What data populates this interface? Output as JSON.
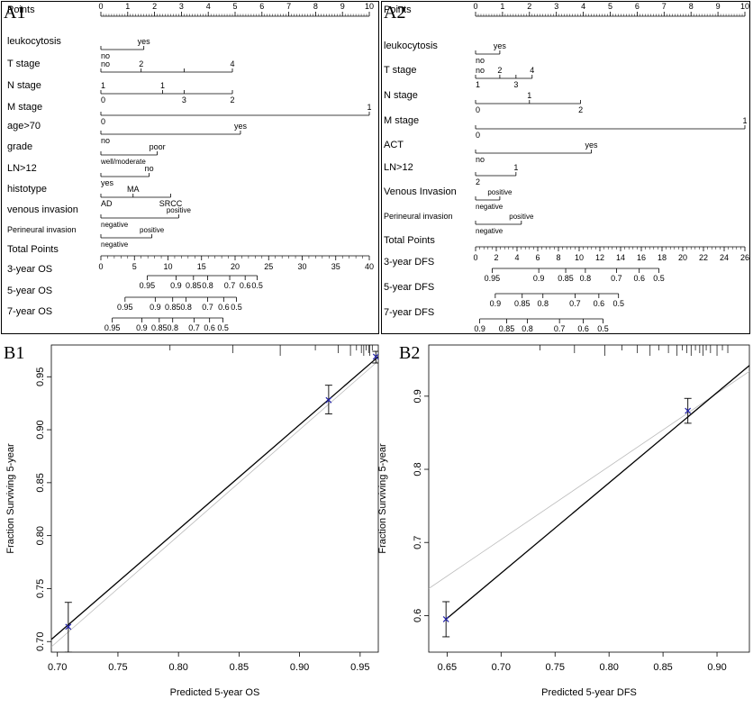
{
  "chart_data": [
    {
      "panel": "A1",
      "type": "nomogram",
      "points_ticks": [
        "0",
        "1",
        "2",
        "3",
        "4",
        "5",
        "6",
        "7",
        "8",
        "9",
        "10"
      ],
      "rows": [
        {
          "label": "Points",
          "kind": "points"
        },
        {
          "label": "leukocytosis",
          "marks": [
            {
              "t": "no",
              "p": 0,
              "pos": "below"
            },
            {
              "t": "yes",
              "p": 1.6,
              "pos": "above"
            }
          ],
          "range": [
            0,
            1.6
          ]
        },
        {
          "label": "T stage",
          "marks": [
            {
              "t": "no",
              "p": 0,
              "pos": "above"
            },
            {
              "t": "2",
              "p": 1.5,
              "pos": "above"
            },
            {
              "t": "4",
              "p": 4.9,
              "pos": "above"
            }
          ],
          "range": [
            0,
            4.9
          ],
          "ticks": [
            0,
            1.5,
            3.1,
            4.9
          ]
        },
        {
          "label": "N stage",
          "marks": [
            {
              "t": "1",
              "p": 0,
              "pos": "above"
            },
            {
              "t": "1",
              "p": 2.3,
              "pos": "above"
            },
            {
              "t": "3",
              "p": 3.1,
              "pos": "below"
            },
            {
              "t": "0",
              "p": 0,
              "pos": "below"
            },
            {
              "t": "2",
              "p": 4.9,
              "pos": "below"
            }
          ],
          "range": [
            0,
            4.9
          ],
          "ticks": [
            0,
            2.3,
            3.1,
            4.9
          ]
        },
        {
          "label": "M stage",
          "marks": [
            {
              "t": "1",
              "p": 10,
              "pos": "above"
            },
            {
              "t": "0",
              "p": 0,
              "pos": "below"
            }
          ],
          "range": [
            0,
            10
          ]
        },
        {
          "label": "age>70",
          "marks": [
            {
              "t": "yes",
              "p": 5.2,
              "pos": "above"
            },
            {
              "t": "no",
              "p": 0,
              "pos": "below"
            }
          ],
          "range": [
            0,
            5.2
          ]
        },
        {
          "label": "grade",
          "marks": [
            {
              "t": "poor",
              "p": 2.1,
              "pos": "above"
            },
            {
              "t": "well/moderate",
              "p": 0,
              "pos": "below"
            }
          ],
          "range": [
            0,
            2.1
          ]
        },
        {
          "label": "LN>12",
          "marks": [
            {
              "t": "no",
              "p": 1.8,
              "pos": "above"
            },
            {
              "t": "yes",
              "p": 0,
              "pos": "below"
            }
          ],
          "range": [
            0,
            1.8
          ]
        },
        {
          "label": "histotype",
          "marks": [
            {
              "t": "MA",
              "p": 1.2,
              "pos": "above"
            },
            {
              "t": "AD",
              "p": 0,
              "pos": "below"
            },
            {
              "t": "SRCC",
              "p": 2.6,
              "pos": "below"
            }
          ],
          "range": [
            0,
            2.6
          ],
          "ticks": [
            0,
            1.2,
            2.6
          ]
        },
        {
          "label": "venous invasion",
          "marks": [
            {
              "t": "positive",
              "p": 2.9,
              "pos": "above"
            },
            {
              "t": "negative",
              "p": 0,
              "pos": "below"
            }
          ],
          "range": [
            0,
            2.9
          ]
        },
        {
          "label": "Perineural invasion",
          "marks": [
            {
              "t": "positive",
              "p": 1.9,
              "pos": "above"
            },
            {
              "t": "negative",
              "p": 0,
              "pos": "below"
            }
          ],
          "range": [
            0,
            1.9
          ]
        }
      ],
      "total_points": {
        "label": "Total Points",
        "ticks": [
          "0",
          "5",
          "10",
          "15",
          "20",
          "25",
          "30",
          "35",
          "40"
        ],
        "max": 40
      },
      "survival_rows": [
        {
          "label": "3-year OS",
          "ticks": [
            {
              "t": "0.95",
              "tp": 6.9
            },
            {
              "t": "0.9",
              "tp": 11.2
            },
            {
              "t": "0.85",
              "tp": 13.8
            },
            {
              "t": "0.8",
              "tp": 15.9
            },
            {
              "t": "0.7",
              "tp": 19.2
            },
            {
              "t": "0.6",
              "tp": 21.5
            },
            {
              "t": "0.5",
              "tp": 23.3
            }
          ]
        },
        {
          "label": "5-year OS",
          "ticks": [
            {
              "t": "0.95",
              "tp": 3.6
            },
            {
              "t": "0.9",
              "tp": 8.1
            },
            {
              "t": "0.85",
              "tp": 10.7
            },
            {
              "t": "0.8",
              "tp": 12.7
            },
            {
              "t": "0.7",
              "tp": 15.9
            },
            {
              "t": "0.6",
              "tp": 18.3
            },
            {
              "t": "0.5",
              "tp": 20.2
            }
          ]
        },
        {
          "label": "7-year OS",
          "ticks": [
            {
              "t": "0.95",
              "tp": 1.7
            },
            {
              "t": "0.9",
              "tp": 6.1
            },
            {
              "t": "0.85",
              "tp": 8.7
            },
            {
              "t": "0.8",
              "tp": 10.7
            },
            {
              "t": "0.7",
              "tp": 13.9
            },
            {
              "t": "0.6",
              "tp": 16.2
            },
            {
              "t": "0.5",
              "tp": 18.2
            }
          ]
        }
      ]
    },
    {
      "panel": "A2",
      "type": "nomogram",
      "points_ticks": [
        "0",
        "1",
        "2",
        "3",
        "4",
        "5",
        "6",
        "7",
        "8",
        "9",
        "10"
      ],
      "rows": [
        {
          "label": "Points",
          "kind": "points"
        },
        {
          "label": "leukocytosis",
          "marks": [
            {
              "t": "yes",
              "p": 0.9,
              "pos": "above"
            },
            {
              "t": "no",
              "p": 0,
              "pos": "below"
            }
          ],
          "range": [
            0,
            0.9
          ]
        },
        {
          "label": "T stage",
          "marks": [
            {
              "t": "no",
              "p": 0,
              "pos": "above"
            },
            {
              "t": "2",
              "p": 0.9,
              "pos": "above"
            },
            {
              "t": "4",
              "p": 2.1,
              "pos": "above"
            },
            {
              "t": "1",
              "p": 0,
              "pos": "below"
            },
            {
              "t": "3",
              "p": 1.5,
              "pos": "below"
            }
          ],
          "range": [
            0,
            2.1
          ],
          "ticks": [
            0,
            0.9,
            1.5,
            2.1
          ]
        },
        {
          "label": "N stage",
          "marks": [
            {
              "t": "1",
              "p": 2.0,
              "pos": "above"
            },
            {
              "t": "0",
              "p": 0,
              "pos": "below"
            },
            {
              "t": "2",
              "p": 3.9,
              "pos": "below"
            }
          ],
          "range": [
            0,
            3.9
          ],
          "ticks": [
            0,
            2.0,
            3.9
          ]
        },
        {
          "label": "M stage",
          "marks": [
            {
              "t": "1",
              "p": 10,
              "pos": "above"
            },
            {
              "t": "0",
              "p": 0,
              "pos": "below"
            }
          ],
          "range": [
            0,
            10
          ]
        },
        {
          "label": "ACT",
          "marks": [
            {
              "t": "yes",
              "p": 4.3,
              "pos": "above"
            },
            {
              "t": "no",
              "p": 0,
              "pos": "below"
            }
          ],
          "range": [
            0,
            4.3
          ]
        },
        {
          "label": "LN>12",
          "marks": [
            {
              "t": "1",
              "p": 1.5,
              "pos": "above"
            },
            {
              "t": "2",
              "p": 0,
              "pos": "below"
            }
          ],
          "range": [
            0,
            1.5
          ]
        },
        {
          "label": "Venous Invasion",
          "marks": [
            {
              "t": "positive",
              "p": 0.9,
              "pos": "above"
            },
            {
              "t": "negative",
              "p": 0,
              "pos": "below"
            }
          ],
          "range": [
            0,
            0.9
          ]
        },
        {
          "label": "Perineural invasion",
          "marks": [
            {
              "t": "positive",
              "p": 1.7,
              "pos": "above"
            },
            {
              "t": "negative",
              "p": 0,
              "pos": "below"
            }
          ],
          "range": [
            0,
            1.7
          ]
        }
      ],
      "total_points": {
        "label": "Total Points",
        "ticks": [
          "0",
          "2",
          "4",
          "6",
          "8",
          "10",
          "12",
          "14",
          "16",
          "18",
          "20",
          "22",
          "24",
          "26"
        ],
        "max": 26
      },
      "survival_rows": [
        {
          "label": "3-year DFS",
          "ticks": [
            {
              "t": "0.95",
              "tp": 1.6
            },
            {
              "t": "0.9",
              "tp": 6.1
            },
            {
              "t": "0.85",
              "tp": 8.7
            },
            {
              "t": "0.8",
              "tp": 10.6
            },
            {
              "t": "0.7",
              "tp": 13.6
            },
            {
              "t": "0.6",
              "tp": 15.8
            },
            {
              "t": "0.5",
              "tp": 17.7
            }
          ]
        },
        {
          "label": "5-year DFS",
          "ticks": [
            {
              "t": "0.9",
              "tp": 1.9
            },
            {
              "t": "0.85",
              "tp": 4.5
            },
            {
              "t": "0.8",
              "tp": 6.5
            },
            {
              "t": "0.7",
              "tp": 9.6
            },
            {
              "t": "0.6",
              "tp": 11.9
            },
            {
              "t": "0.5",
              "tp": 13.8
            }
          ]
        },
        {
          "label": "7-year DFS",
          "ticks": [
            {
              "t": "0.9",
              "tp": 0.4
            },
            {
              "t": "0.85",
              "tp": 3.0
            },
            {
              "t": "0.8",
              "tp": 5.0
            },
            {
              "t": "0.7",
              "tp": 8.1
            },
            {
              "t": "0.6",
              "tp": 10.4
            },
            {
              "t": "0.5",
              "tp": 12.3
            }
          ]
        }
      ]
    },
    {
      "panel": "B1",
      "type": "line",
      "xlabel": "Predicted  5-year OS",
      "ylabel": "Fraction Surviving 5-year",
      "xlim": [
        0.695,
        0.965
      ],
      "ylim": [
        0.69,
        0.98
      ],
      "xticks": [
        "0.70",
        "0.75",
        "0.80",
        "0.85",
        "0.90",
        "0.95"
      ],
      "yticks": [
        "0.70",
        "0.75",
        "0.80",
        "0.85",
        "0.90",
        "0.95"
      ],
      "ideal_line": [
        [
          0.695,
          0.695
        ],
        [
          0.965,
          0.965
        ]
      ],
      "calibration_line": [
        [
          0.695,
          0.702
        ],
        [
          0.965,
          0.969
        ]
      ],
      "points": [
        {
          "x": 0.709,
          "y": 0.714,
          "lo": 0.69,
          "hi": 0.737
        },
        {
          "x": 0.924,
          "y": 0.928,
          "lo": 0.915,
          "hi": 0.942
        },
        {
          "x": 0.963,
          "y": 0.969,
          "lo": 0.963,
          "hi": 0.974
        }
      ],
      "rug_x": [
        0.793,
        0.845,
        0.884,
        0.913,
        0.932,
        0.942,
        0.947,
        0.951,
        0.953,
        0.955,
        0.957,
        0.958,
        0.96
      ]
    },
    {
      "panel": "B2",
      "type": "line",
      "xlabel": "Predicted  5-year DFS",
      "ylabel": "Fraction Surviving 5-year",
      "xlim": [
        0.633,
        0.93
      ],
      "ylim": [
        0.55,
        0.97
      ],
      "xticks": [
        "0.65",
        "0.70",
        "0.75",
        "0.80",
        "0.85",
        "0.90"
      ],
      "yticks": [
        "0.6",
        "0.7",
        "0.8",
        "0.9"
      ],
      "ideal_line": [
        [
          0.633,
          0.637
        ],
        [
          0.93,
          0.934
        ]
      ],
      "calibration_line": [
        [
          0.649,
          0.595
        ],
        [
          0.93,
          0.942
        ]
      ],
      "points": [
        {
          "x": 0.649,
          "y": 0.595,
          "lo": 0.571,
          "hi": 0.619
        },
        {
          "x": 0.873,
          "y": 0.88,
          "lo": 0.863,
          "hi": 0.897
        }
      ],
      "rug_x": [
        0.736,
        0.768,
        0.796,
        0.812,
        0.826,
        0.838,
        0.846,
        0.855,
        0.863,
        0.868,
        0.872,
        0.876,
        0.88,
        0.884,
        0.887,
        0.89,
        0.894,
        0.9,
        0.905,
        0.91
      ]
    }
  ],
  "panels": {
    "a1": "A1",
    "a2": "A2",
    "b1": "B1",
    "b2": "B2"
  }
}
